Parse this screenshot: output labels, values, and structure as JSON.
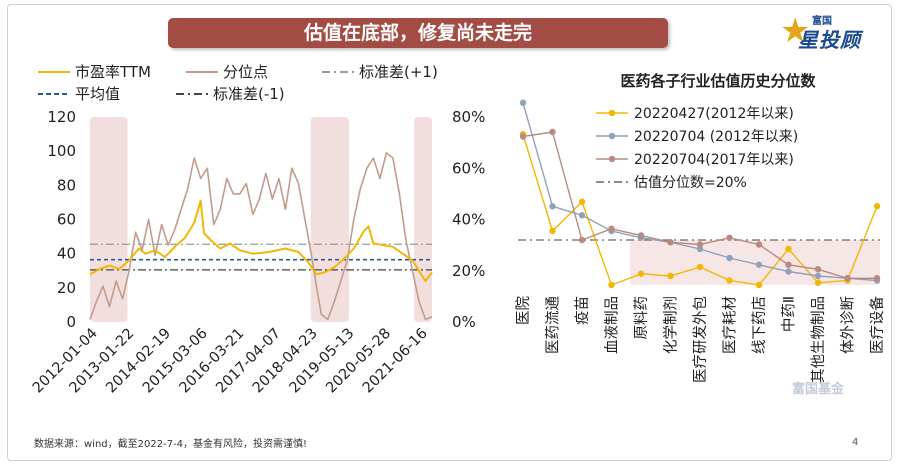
{
  "banner": {
    "title": "估值在底部，修复尚未走完"
  },
  "logo": {
    "small": "富国",
    "big": "星投顾"
  },
  "footer": {
    "source": "数据来源：wind，截至2022-7-4，基金有风险，投资需谨慎!",
    "page": "4"
  },
  "watermark": "富国基金",
  "colors": {
    "pe": "#f2b705",
    "pct": "#c29b8f",
    "mean": "#1f5c99",
    "sd": "#999999",
    "s1": "#f2b705",
    "s2": "#8fa2bb",
    "s3": "#b88a7f",
    "shade": "#f3dede",
    "ref": "#666666"
  },
  "chart_data": [
    {
      "type": "line",
      "legend": [
        "市盈率TTM",
        "分位点",
        "标准差(+1)",
        "平均值",
        "标准差(-1)"
      ],
      "x_ticks": [
        "2012-01-04",
        "2013-01-22",
        "2014-02-19",
        "2015-03-06",
        "2016-03-21",
        "2017-04-07",
        "2018-04-23",
        "2019-05-13",
        "2020-05-28",
        "2021-06-16"
      ],
      "ylim_left": [
        0,
        120
      ],
      "yticks_left": [
        "0",
        "20",
        "40",
        "60",
        "80",
        "100",
        "120"
      ],
      "ylim_right": [
        0,
        80
      ],
      "yticks_right": [
        "0%",
        "20%",
        "40%",
        "60%",
        "80%"
      ],
      "mean": 36.5,
      "sd_plus": 45.5,
      "sd_minus": 30.5,
      "shaded_ranges": [
        [
          2012.0,
          2013.15
        ],
        [
          2018.78,
          2019.95
        ],
        [
          2021.95,
          2022.5
        ]
      ],
      "pe": {
        "x": [
          2012.0,
          2012.3,
          2012.6,
          2012.9,
          2013.2,
          2013.5,
          2013.7,
          2014.0,
          2014.3,
          2014.6,
          2014.9,
          2015.2,
          2015.4,
          2015.5,
          2015.7,
          2016.0,
          2016.3,
          2016.6,
          2017.0,
          2017.5,
          2018.0,
          2018.4,
          2018.7,
          2018.95,
          2019.2,
          2019.5,
          2019.8,
          2020.1,
          2020.4,
          2020.55,
          2020.7,
          2021.0,
          2021.3,
          2021.6,
          2021.9,
          2022.1,
          2022.3,
          2022.5
        ],
        "y": [
          28,
          31,
          33,
          31,
          36,
          43,
          40,
          42,
          38,
          44,
          49,
          58,
          71,
          52,
          48,
          43,
          46,
          42,
          40,
          41,
          43,
          41,
          35,
          28,
          29,
          32,
          37,
          43,
          53,
          56,
          46,
          45,
          44,
          40,
          36,
          30,
          24,
          29
        ]
      },
      "pct": {
        "x": [
          2012.0,
          2012.2,
          2012.4,
          2012.6,
          2012.8,
          2013.0,
          2013.2,
          2013.4,
          2013.6,
          2013.8,
          2014.0,
          2014.2,
          2014.4,
          2014.6,
          2014.8,
          2015.0,
          2015.2,
          2015.4,
          2015.6,
          2015.8,
          2016.0,
          2016.2,
          2016.4,
          2016.6,
          2016.8,
          2017.0,
          2017.2,
          2017.4,
          2017.6,
          2017.8,
          2018.0,
          2018.2,
          2018.4,
          2018.6,
          2018.8,
          2018.95,
          2019.1,
          2019.3,
          2019.5,
          2019.7,
          2019.9,
          2020.1,
          2020.3,
          2020.5,
          2020.7,
          2020.9,
          2021.1,
          2021.3,
          2021.5,
          2021.7,
          2021.9,
          2022.1,
          2022.3,
          2022.5
        ],
        "y": [
          1,
          8,
          14,
          6,
          16,
          9,
          20,
          35,
          28,
          40,
          26,
          38,
          30,
          36,
          44,
          52,
          64,
          56,
          60,
          38,
          44,
          56,
          50,
          50,
          54,
          42,
          48,
          58,
          48,
          56,
          44,
          60,
          54,
          40,
          26,
          14,
          3,
          1,
          8,
          16,
          24,
          40,
          52,
          60,
          64,
          56,
          66,
          64,
          50,
          32,
          20,
          8,
          1,
          2
        ]
      }
    },
    {
      "type": "line",
      "title": "医药各子行业估值历史分位数",
      "categories": [
        "医院",
        "医药流通",
        "疫苗",
        "血液制品",
        "原料药",
        "化学制剂",
        "医疗研发外包",
        "医疗耗材",
        "线下药店",
        "中药Ⅱ",
        "其他生物制品",
        "体外诊断",
        "医疗设备"
      ],
      "ylim": [
        0,
        80
      ],
      "yticks": [
        "0%",
        "20%",
        "40%",
        "60%",
        "80%"
      ],
      "reference_line": 20,
      "series": [
        {
          "name": "20220427(2012年以来)",
          "values": [
            67,
            24,
            37,
            0,
            5,
            4,
            8,
            2,
            0,
            16,
            1,
            2,
            35
          ]
        },
        {
          "name": "20220704  (2012年以来)",
          "values": [
            81,
            35,
            31,
            24,
            21,
            19,
            16,
            12,
            9,
            6,
            4,
            3,
            2
          ]
        },
        {
          "name": "20220704(2017年以来)",
          "values": [
            66,
            68,
            20,
            25,
            22,
            19,
            18,
            21,
            18,
            9,
            7,
            3,
            3
          ]
        },
        {
          "name": "估值分位数=20%"
        }
      ]
    }
  ]
}
